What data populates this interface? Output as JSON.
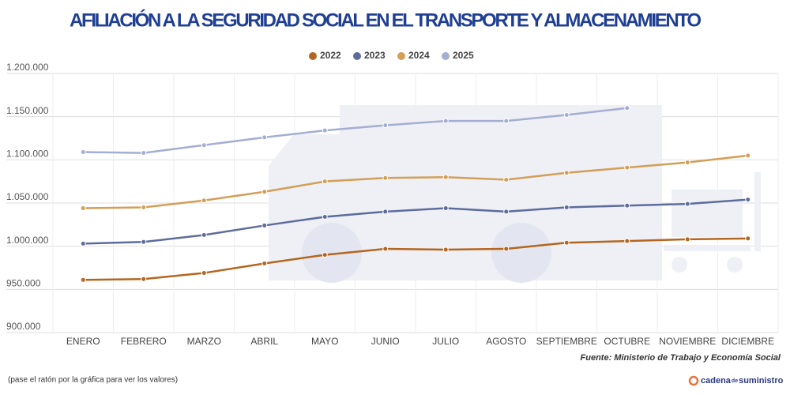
{
  "chart_data": {
    "type": "line",
    "title": "AFILIACIÓN A LA SEGURIDAD SOCIAL EN EL TRANSPORTE Y ALMACENAMIENTO",
    "categories": [
      "ENERO",
      "FEBRERO",
      "MARZO",
      "ABRIL",
      "MAYO",
      "JUNIO",
      "JULIO",
      "AGOSTO",
      "SEPTIEMBRE",
      "OCTUBRE",
      "NOVIEMBRE",
      "DICIEMBRE"
    ],
    "series": [
      {
        "name": "2022",
        "color": "#b3661f",
        "values": [
          961000,
          962000,
          969000,
          980000,
          990000,
          997000,
          996000,
          997000,
          1004000,
          1006000,
          1008000,
          1009000
        ]
      },
      {
        "name": "2023",
        "color": "#5d6c9c",
        "values": [
          1003000,
          1005000,
          1013000,
          1024000,
          1034000,
          1040000,
          1044000,
          1040000,
          1045000,
          1047000,
          1049000,
          1054000
        ]
      },
      {
        "name": "2024",
        "color": "#d39f57",
        "values": [
          1044000,
          1045000,
          1053000,
          1063000,
          1075000,
          1079000,
          1080000,
          1077000,
          1085000,
          1091000,
          1097000,
          1105000
        ]
      },
      {
        "name": "2025",
        "color": "#a4aed1",
        "values": [
          1109000,
          1108000,
          1117000,
          1126000,
          1134000,
          1140000,
          1145000,
          1145000,
          1152000,
          1160000,
          null,
          null
        ]
      }
    ],
    "ylim": [
      900000,
      1200000
    ],
    "yticks": [
      {
        "value": 900000,
        "label": "900.000"
      },
      {
        "value": 950000,
        "label": "950.000"
      },
      {
        "value": 1000000,
        "label": "1.000.000"
      },
      {
        "value": 1050000,
        "label": "1.050.000"
      },
      {
        "value": 1100000,
        "label": "1.100.000"
      },
      {
        "value": 1150000,
        "label": "1.150.000"
      },
      {
        "value": 1200000,
        "label": "1.200.000"
      }
    ],
    "grid": true,
    "legend": "top",
    "source": "Fuente: Ministerio de Trabajo y Economía Social",
    "note": "(pase el ratón por la gráfica para ver los valores)",
    "logo": [
      "cadena",
      "de",
      "suministro"
    ]
  }
}
